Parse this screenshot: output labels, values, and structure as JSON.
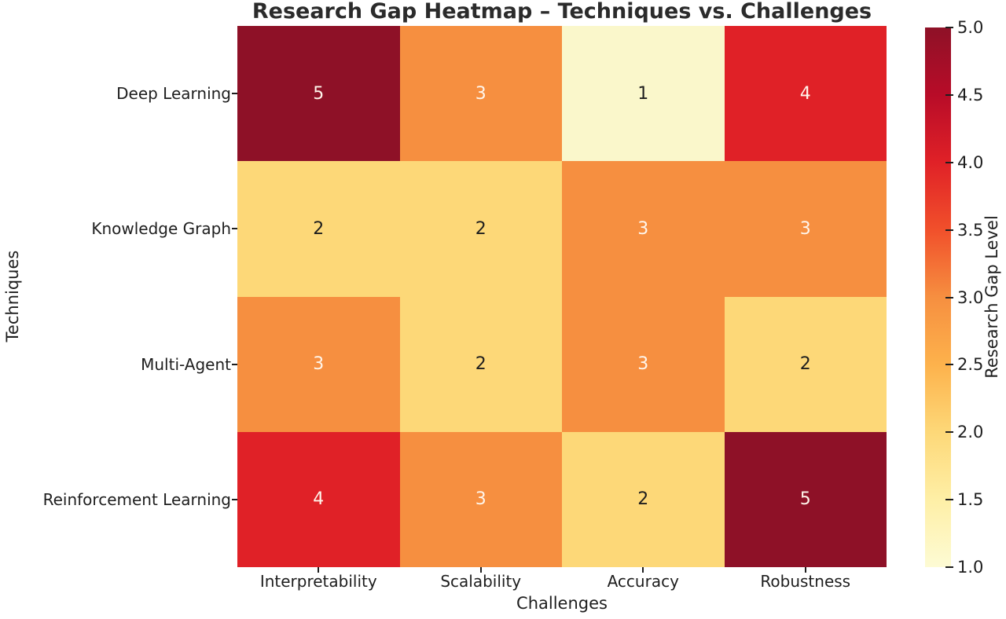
{
  "chart_data": {
    "type": "heatmap",
    "title": "Research Gap Heatmap – Techniques vs. Challenges",
    "xlabel": "Challenges",
    "ylabel": "Techniques",
    "rows": [
      "Deep Learning",
      "Knowledge Graph",
      "Multi-Agent",
      "Reinforcement Learning"
    ],
    "columns": [
      "Interpretability",
      "Scalability",
      "Accuracy",
      "Robustness"
    ],
    "values": [
      [
        5,
        3,
        1,
        4
      ],
      [
        2,
        2,
        3,
        3
      ],
      [
        3,
        2,
        3,
        2
      ],
      [
        4,
        3,
        2,
        5
      ]
    ],
    "vmin": 1,
    "vmax": 5,
    "grid": false,
    "legend_position": "right-colorbar",
    "colorbar": {
      "label": "Research Gap Level",
      "tick_labels": [
        "5.0",
        "4.5",
        "4.0",
        "3.5",
        "3.0",
        "2.5",
        "2.0",
        "1.5",
        "1.0"
      ]
    },
    "colormap": {
      "name": "YlOrRd",
      "value_colors": {
        "1": "#FAF7CB",
        "2": "#FDD878",
        "3": "#F68F40",
        "4": "#E02127",
        "5": "#8E1127"
      },
      "annotation_text_colors": {
        "1": "#1e1e1e",
        "2": "#1e1e1e",
        "3": "#FFF6EC",
        "4": "#FFF6EC",
        "5": "#FFF6EC"
      },
      "gradient_stops_bottom_to_top": [
        "#FDFBD4",
        "#FEEFA6",
        "#FDD878",
        "#FDB24C",
        "#F68F40",
        "#F1502B",
        "#E02127",
        "#B80C28",
        "#8E1127"
      ]
    }
  }
}
